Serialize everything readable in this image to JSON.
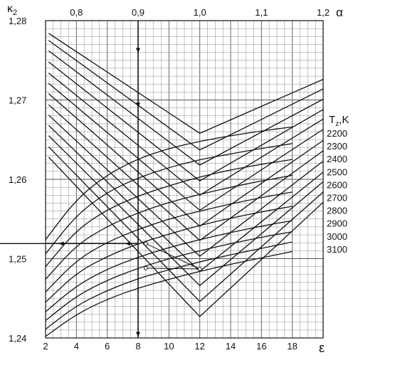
{
  "chart_data": {
    "type": "line",
    "bottom_axis": {
      "label": "ε",
      "ticks": [
        2,
        4,
        6,
        8,
        10,
        12,
        14,
        16,
        18
      ],
      "tick_labels": [
        "2",
        "4",
        "6",
        "8",
        "10",
        "12",
        "14",
        "16",
        "18"
      ],
      "range": [
        2,
        20
      ]
    },
    "top_axis": {
      "label": "α",
      "ticks": [
        0.8,
        0.9,
        1.0,
        1.1,
        1.2
      ],
      "tick_labels": [
        "0,8",
        "0,9",
        "1,0",
        "1,1",
        "1,2"
      ],
      "range": [
        0.75,
        1.2
      ]
    },
    "left_axis": {
      "label": "κ",
      "label_subscript": "2",
      "ticks": [
        1.24,
        1.25,
        1.26,
        1.27,
        1.28
      ],
      "tick_labels": [
        "1,24",
        "1,25",
        "1,26",
        "1,27",
        "1,28"
      ],
      "range": [
        1.24,
        1.28
      ]
    },
    "legend": {
      "title": "T",
      "title_subscript": "z",
      "title_suffix": ",K",
      "labels": [
        "2200",
        "2300",
        "2400",
        "2500",
        "2600",
        "2700",
        "2800",
        "2900",
        "3000",
        "3100"
      ]
    },
    "alpha_series": [
      {
        "y_alpha_min": 1.2784,
        "y_alpha_1": 1.2658,
        "y_alpha_max": 1.2726
      },
      {
        "y_alpha_min": 1.2775,
        "y_alpha_1": 1.2637,
        "y_alpha_max": 1.2714
      },
      {
        "y_alpha_min": 1.2762,
        "y_alpha_1": 1.2618,
        "y_alpha_max": 1.2701
      },
      {
        "y_alpha_min": 1.2748,
        "y_alpha_1": 1.2598,
        "y_alpha_max": 1.2688
      },
      {
        "y_alpha_min": 1.2734,
        "y_alpha_1": 1.258,
        "y_alpha_max": 1.2676
      },
      {
        "y_alpha_min": 1.2721,
        "y_alpha_1": 1.2561,
        "y_alpha_max": 1.2663
      },
      {
        "y_alpha_min": 1.2708,
        "y_alpha_1": 1.2541,
        "y_alpha_max": 1.2649
      },
      {
        "y_alpha_min": 1.2694,
        "y_alpha_1": 1.2523,
        "y_alpha_max": 1.2636
      },
      {
        "y_alpha_min": 1.2681,
        "y_alpha_1": 1.2503,
        "y_alpha_max": 1.2623
      },
      {
        "y_alpha_min": 1.2668,
        "y_alpha_1": 1.2484,
        "y_alpha_max": 1.2609
      },
      {
        "y_alpha_min": 1.2655,
        "y_alpha_1": 1.2466,
        "y_alpha_max": 1.2597
      },
      {
        "y_alpha_min": 1.2641,
        "y_alpha_1": 1.2446,
        "y_alpha_max": 1.2584
      },
      {
        "y_alpha_min": 1.2628,
        "y_alpha_1": 1.2427,
        "y_alpha_max": 1.2571
      }
    ],
    "temperature_series": [
      {
        "name": "2200",
        "values": [
          1.2524,
          1.2575,
          1.2606,
          1.2626,
          1.2639,
          1.2648,
          1.2655,
          1.2661,
          1.2666
        ]
      },
      {
        "name": "2300",
        "values": [
          1.2506,
          1.2555,
          1.2584,
          1.2602,
          1.2615,
          1.2625,
          1.2632,
          1.2639,
          1.2645
        ]
      },
      {
        "name": "2400",
        "values": [
          1.249,
          1.2536,
          1.2562,
          1.2579,
          1.2592,
          1.2603,
          1.2612,
          1.2619,
          1.2625
        ]
      },
      {
        "name": "2500",
        "values": [
          1.2474,
          1.2517,
          1.2541,
          1.2558,
          1.2571,
          1.2581,
          1.259,
          1.2598,
          1.2605
        ]
      },
      {
        "name": "2600",
        "values": [
          1.2458,
          1.2498,
          1.2521,
          1.2537,
          1.255,
          1.256,
          1.2569,
          1.2577,
          1.2584
        ]
      },
      {
        "name": "2700",
        "values": [
          1.2445,
          1.2482,
          1.2503,
          1.2519,
          1.2531,
          1.2542,
          1.2551,
          1.2559,
          1.2566
        ]
      },
      {
        "name": "2800",
        "values": [
          1.2433,
          1.2466,
          1.2487,
          1.2502,
          1.2514,
          1.2524,
          1.2533,
          1.2541,
          1.2548
        ]
      },
      {
        "name": "2900",
        "values": [
          1.2422,
          1.2453,
          1.2473,
          1.2488,
          1.25,
          1.251,
          1.2519,
          1.2527,
          1.2534
        ]
      },
      {
        "name": "3000",
        "values": [
          1.2411,
          1.2441,
          1.246,
          1.2475,
          1.2486,
          1.2496,
          1.2505,
          1.2513,
          1.2521
        ]
      },
      {
        "name": "3100",
        "values": [
          1.2402,
          1.243,
          1.2449,
          1.2463,
          1.2474,
          1.2484,
          1.2493,
          1.2501,
          1.2509
        ]
      }
    ],
    "temperature_x": [
      2,
      4,
      6,
      8,
      10,
      12,
      14,
      16,
      18
    ],
    "example_markers": {
      "alpha": 0.9,
      "kappa": 1.2519,
      "points": [
        {
          "epsilon": 8.5,
          "kappa": 1.2519
        },
        {
          "epsilon": 8.5,
          "kappa": 1.2488
        },
        {
          "epsilon": 12,
          "kappa": 1.2487
        }
      ]
    },
    "grid": true
  }
}
